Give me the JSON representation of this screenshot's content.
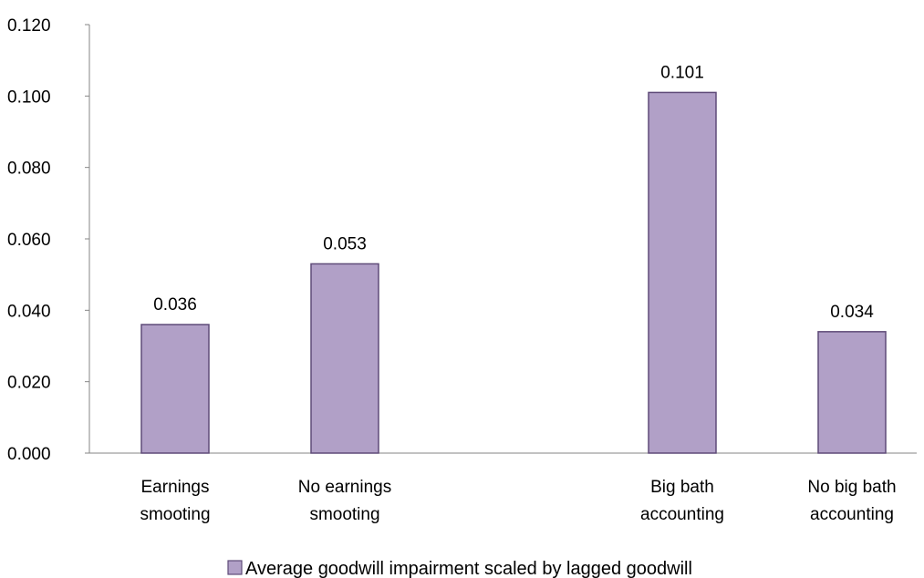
{
  "chart_data": {
    "type": "bar",
    "title": "",
    "xlabel": "",
    "ylabel": "",
    "categories": [
      [
        "Earnings",
        "smooting"
      ],
      [
        "No earnings",
        "smooting"
      ],
      [
        "Big bath",
        "accounting"
      ],
      [
        "No big bath",
        "accounting"
      ]
    ],
    "series": [
      {
        "name": "Average goodwill impairment scaled by lagged goodwill",
        "values": [
          0.036,
          0.053,
          0.101,
          0.034
        ],
        "data_labels": [
          "0.036",
          "0.053",
          "0.101",
          "0.034"
        ],
        "color": "#b1a0c7",
        "border_color": "#5f4b78"
      }
    ],
    "ylim": [
      0,
      0.12
    ],
    "yticks": [
      0,
      0.02,
      0.04,
      0.06,
      0.08,
      0.1,
      0.12
    ],
    "ytick_labels": [
      "0.000",
      "0.020",
      "0.040",
      "0.060",
      "0.080",
      "0.100",
      "0.120"
    ],
    "grid": false,
    "legend_position": "bottom",
    "axis_color": "#868686"
  }
}
